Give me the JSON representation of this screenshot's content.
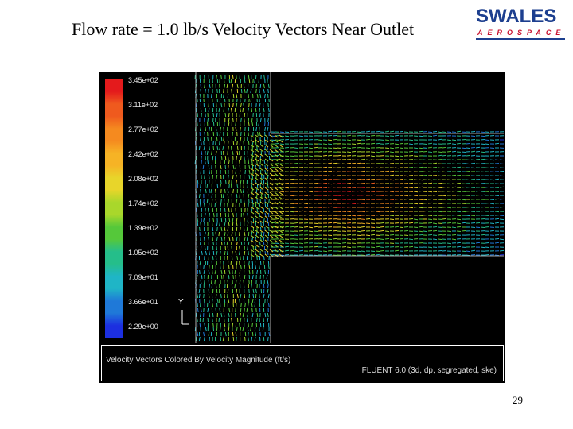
{
  "slide": {
    "title": "Flow rate = 1.0 lb/s Velocity Vectors Near Outlet",
    "page_number": "29"
  },
  "logo": {
    "main": "SWALES",
    "sub": "AEROSPACE",
    "colors": {
      "main": "#1d3f8f",
      "sub": "#c8102e"
    }
  },
  "figure": {
    "background": "#000000",
    "caption_left": "Velocity Vectors Colored By Velocity Magnitude (ft/s)",
    "caption_right": "FLUENT 6.0 (3d, dp, segregated, ske)",
    "axis_label": "Y",
    "legend": {
      "labels": [
        "3.45e+02",
        "3.11e+02",
        "2.77e+02",
        "2.42e+02",
        "2.08e+02",
        "1.74e+02",
        "1.39e+02",
        "1.05e+02",
        "7.09e+01",
        "3.66e+01",
        "2.29e+00"
      ],
      "colors": [
        "#e41a1c",
        "#ef5a1e",
        "#f58a1f",
        "#f6b325",
        "#e8d52a",
        "#a9d72b",
        "#55c83a",
        "#25be8a",
        "#1fb5c6",
        "#1f79d8",
        "#1c2fe0"
      ]
    }
  }
}
